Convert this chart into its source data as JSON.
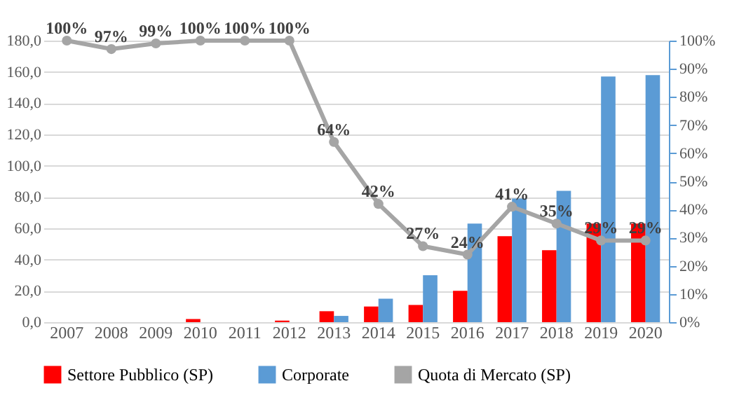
{
  "chart_data": {
    "type": "bar",
    "categories": [
      "2007",
      "2008",
      "2009",
      "2010",
      "2011",
      "2012",
      "2013",
      "2014",
      "2015",
      "2016",
      "2017",
      "2018",
      "2019",
      "2020"
    ],
    "series": [
      {
        "name": "Settore Pubblico (SP)",
        "color": "#ff0000",
        "values": [
          0,
          0,
          0,
          2,
          0,
          1,
          7,
          10,
          11,
          20,
          55,
          46,
          63,
          63
        ]
      },
      {
        "name": "Corporate",
        "color": "#5b9bd5",
        "values": [
          0,
          0,
          0,
          0,
          0,
          0,
          4,
          15,
          30,
          63,
          79,
          84,
          157,
          158
        ]
      },
      {
        "name": "Quota di Mercato (SP)",
        "type": "line",
        "axis": "y2",
        "color": "#a5a5a5",
        "marker": "circle",
        "values": [
          100,
          97,
          99,
          100,
          100,
          100,
          64,
          42,
          27,
          24,
          41,
          35,
          29,
          29
        ],
        "value_labels": [
          "100%",
          "97%",
          "99%",
          "100%",
          "100%",
          "100%",
          "64%",
          "42%",
          "27%",
          "24%",
          "41%",
          "35%",
          "29%",
          "29%"
        ]
      }
    ],
    "ylim": [
      0,
      180
    ],
    "yticks": [
      {
        "value": 0,
        "label": "0,0"
      },
      {
        "value": 20,
        "label": "20,0"
      },
      {
        "value": 40,
        "label": "40,0"
      },
      {
        "value": 60,
        "label": "60,0"
      },
      {
        "value": 80,
        "label": "80,0"
      },
      {
        "value": 100,
        "label": "100,0"
      },
      {
        "value": 120,
        "label": "120,0"
      },
      {
        "value": 140,
        "label": "140,0"
      },
      {
        "value": 160,
        "label": "160,0"
      },
      {
        "value": 180,
        "label": "180,0"
      }
    ],
    "y2lim": [
      0,
      100
    ],
    "y2ticks": [
      {
        "value": 0,
        "label": "0%"
      },
      {
        "value": 10,
        "label": "10%"
      },
      {
        "value": 20,
        "label": "20%"
      },
      {
        "value": 30,
        "label": "30%"
      },
      {
        "value": 40,
        "label": "40%"
      },
      {
        "value": 50,
        "label": "50%"
      },
      {
        "value": 60,
        "label": "60%"
      },
      {
        "value": 70,
        "label": "70%"
      },
      {
        "value": 80,
        "label": "80%"
      },
      {
        "value": 90,
        "label": "90%"
      },
      {
        "value": 100,
        "label": "100%"
      }
    ],
    "grid": "y",
    "legend": "bottom"
  }
}
